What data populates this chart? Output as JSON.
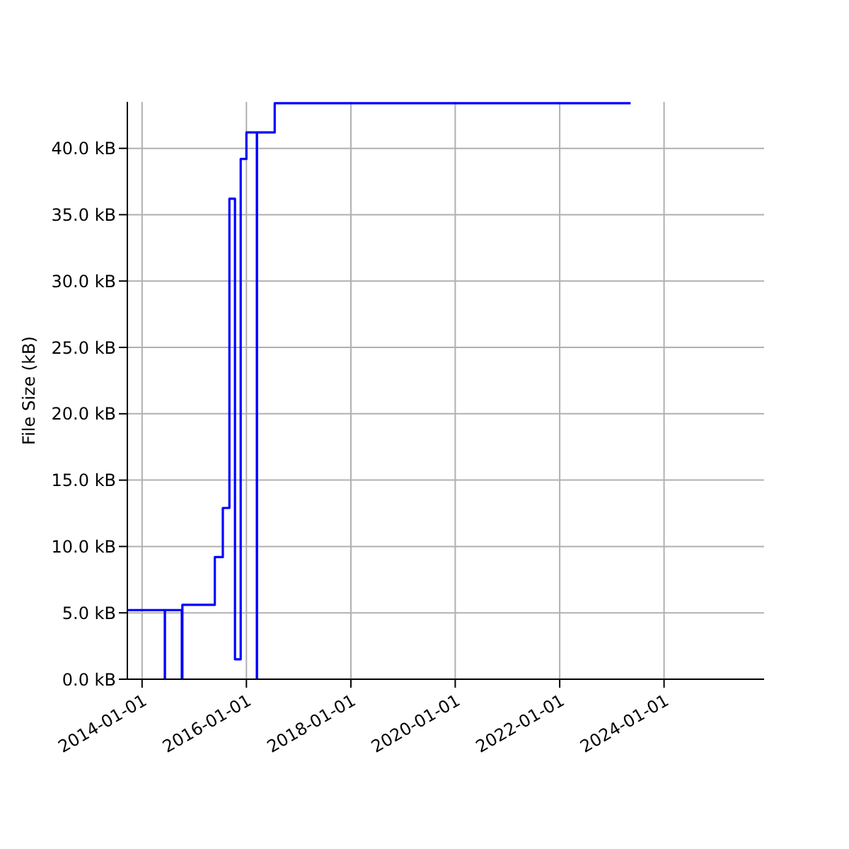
{
  "chart_data": {
    "type": "step",
    "ylabel": "File Size (kB)",
    "x": [
      "2013-09-20",
      "2014-06-09",
      "2014-06-10",
      "2014-10-06",
      "2014-10-10",
      "2015-05-25",
      "2015-07-20",
      "2015-09-04",
      "2015-10-13",
      "2015-11-22",
      "2016-01-01",
      "2016-03-14",
      "2016-03-15",
      "2016-07-17",
      "2023-05-12"
    ],
    "series": [
      {
        "color": "#0000ff",
        "values": [
          5.2,
          0,
          5.2,
          0,
          5.6,
          9.2,
          12.9,
          36.2,
          1.5,
          39.2,
          41.2,
          0,
          41.2,
          43.4,
          43.4
        ]
      }
    ],
    "xlim": [
      "2013-09-20",
      "2025-12-01"
    ],
    "xticks": [
      "2014-01-01",
      "2016-01-01",
      "2018-01-01",
      "2020-01-01",
      "2022-01-01",
      "2024-01-01"
    ],
    "ylim": [
      0,
      43.5
    ],
    "yticks": [
      {
        "value": 0,
        "label": "0.0 kB"
      },
      {
        "value": 5,
        "label": "5.0 kB"
      },
      {
        "value": 10,
        "label": "10.0 kB"
      },
      {
        "value": 15,
        "label": "15.0 kB"
      },
      {
        "value": 20,
        "label": "20.0 kB"
      },
      {
        "value": 25,
        "label": "25.0 kB"
      },
      {
        "value": 30,
        "label": "30.0 kB"
      },
      {
        "value": 35,
        "label": "35.0 kB"
      },
      {
        "value": 40,
        "label": "40.0 kB"
      }
    ],
    "grid": true
  }
}
